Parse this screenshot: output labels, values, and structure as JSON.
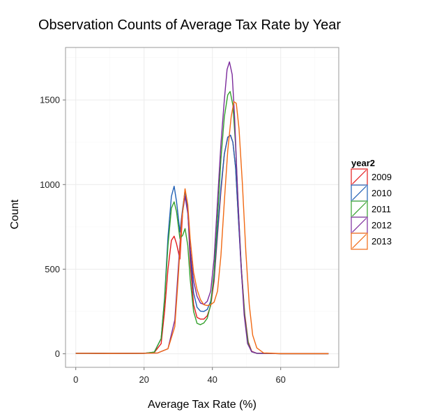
{
  "chart_data": {
    "type": "line",
    "title": "Observation Counts of Average Tax Rate by Year",
    "xlabel": "Average Tax Rate (%)",
    "ylabel": "Count",
    "xlim": [
      -3,
      77
    ],
    "ylim": [
      -80,
      1810
    ],
    "xticks": [
      0,
      20,
      40,
      60
    ],
    "yticks": [
      0,
      500,
      1000,
      1500
    ],
    "grid": true,
    "legend": {
      "title": "year2",
      "position": "right"
    },
    "series": [
      {
        "name": "2009",
        "color": "#e41a1c",
        "points": [
          [
            0,
            3
          ],
          [
            10,
            2
          ],
          [
            20,
            3
          ],
          [
            23,
            8
          ],
          [
            25,
            60
          ],
          [
            26,
            250
          ],
          [
            27,
            500
          ],
          [
            28,
            670
          ],
          [
            28.8,
            695
          ],
          [
            29.5,
            650
          ],
          [
            30.5,
            560
          ],
          [
            31.3,
            840
          ],
          [
            32,
            970
          ],
          [
            32.8,
            860
          ],
          [
            33.5,
            540
          ],
          [
            34.5,
            290
          ],
          [
            35.5,
            215
          ],
          [
            36.5,
            205
          ],
          [
            37.5,
            205
          ],
          [
            38.5,
            225
          ],
          [
            39.5,
            285
          ],
          [
            40.5,
            430
          ],
          [
            41.5,
            700
          ],
          [
            42.5,
            960
          ],
          [
            43.5,
            1180
          ],
          [
            44.5,
            1280
          ],
          [
            45.3,
            1290
          ],
          [
            46,
            1250
          ],
          [
            46.8,
            1100
          ],
          [
            47.5,
            840
          ],
          [
            48.5,
            500
          ],
          [
            49.5,
            230
          ],
          [
            50.5,
            70
          ],
          [
            51.5,
            15
          ],
          [
            53,
            3
          ],
          [
            60,
            1
          ],
          [
            74,
            1
          ]
        ]
      },
      {
        "name": "2010",
        "color": "#1f5fb4",
        "points": [
          [
            0,
            3
          ],
          [
            10,
            2
          ],
          [
            20,
            3
          ],
          [
            23,
            10
          ],
          [
            25,
            90
          ],
          [
            26,
            330
          ],
          [
            27,
            690
          ],
          [
            28,
            930
          ],
          [
            28.8,
            990
          ],
          [
            29.5,
            900
          ],
          [
            30.5,
            720
          ],
          [
            31.3,
            860
          ],
          [
            32,
            960
          ],
          [
            32.8,
            850
          ],
          [
            33.5,
            590
          ],
          [
            34.5,
            360
          ],
          [
            35.5,
            275
          ],
          [
            36.5,
            252
          ],
          [
            37.5,
            250
          ],
          [
            38.5,
            262
          ],
          [
            39.5,
            310
          ],
          [
            40.5,
            450
          ],
          [
            41.5,
            720
          ],
          [
            42.5,
            980
          ],
          [
            43.5,
            1180
          ],
          [
            44.5,
            1280
          ],
          [
            45.3,
            1292
          ],
          [
            46,
            1250
          ],
          [
            46.8,
            1100
          ],
          [
            47.5,
            840
          ],
          [
            48.5,
            480
          ],
          [
            49.5,
            210
          ],
          [
            50.5,
            60
          ],
          [
            51.5,
            12
          ],
          [
            53,
            3
          ],
          [
            60,
            1
          ],
          [
            74,
            1
          ]
        ]
      },
      {
        "name": "2011",
        "color": "#33a02c",
        "points": [
          [
            0,
            3
          ],
          [
            10,
            2
          ],
          [
            20,
            3
          ],
          [
            23,
            10
          ],
          [
            25,
            90
          ],
          [
            26,
            320
          ],
          [
            27,
            640
          ],
          [
            28,
            860
          ],
          [
            28.8,
            898
          ],
          [
            29.5,
            840
          ],
          [
            30.5,
            680
          ],
          [
            31.3,
            700
          ],
          [
            32,
            740
          ],
          [
            32.8,
            640
          ],
          [
            33.5,
            440
          ],
          [
            34.5,
            250
          ],
          [
            35.5,
            180
          ],
          [
            36.5,
            172
          ],
          [
            37.5,
            182
          ],
          [
            38.5,
            210
          ],
          [
            39.5,
            290
          ],
          [
            40.5,
            480
          ],
          [
            41.5,
            800
          ],
          [
            42.5,
            1150
          ],
          [
            43.5,
            1400
          ],
          [
            44.5,
            1530
          ],
          [
            45.2,
            1550
          ],
          [
            46,
            1470
          ],
          [
            46.8,
            1230
          ],
          [
            47.5,
            900
          ],
          [
            48.5,
            500
          ],
          [
            49.5,
            210
          ],
          [
            50.5,
            60
          ],
          [
            51.5,
            12
          ],
          [
            53,
            3
          ],
          [
            60,
            1
          ],
          [
            74,
            1
          ]
        ]
      },
      {
        "name": "2012",
        "color": "#7b2a9c",
        "points": [
          [
            0,
            3
          ],
          [
            10,
            2
          ],
          [
            20,
            3
          ],
          [
            24,
            5
          ],
          [
            27,
            30
          ],
          [
            29,
            200
          ],
          [
            30,
            500
          ],
          [
            31,
            800
          ],
          [
            32,
            930
          ],
          [
            32.8,
            830
          ],
          [
            33.5,
            620
          ],
          [
            34.5,
            430
          ],
          [
            35.5,
            340
          ],
          [
            36.5,
            300
          ],
          [
            37.5,
            292
          ],
          [
            38.5,
            310
          ],
          [
            39.5,
            370
          ],
          [
            40.5,
            560
          ],
          [
            41.5,
            900
          ],
          [
            42.5,
            1240
          ],
          [
            43.5,
            1500
          ],
          [
            44.3,
            1680
          ],
          [
            45,
            1725
          ],
          [
            45.8,
            1650
          ],
          [
            46.5,
            1400
          ],
          [
            47.3,
            1000
          ],
          [
            48.3,
            560
          ],
          [
            49.3,
            230
          ],
          [
            50.3,
            60
          ],
          [
            51.5,
            12
          ],
          [
            53,
            3
          ],
          [
            60,
            1
          ],
          [
            74,
            1
          ]
        ]
      },
      {
        "name": "2013",
        "color": "#f16913",
        "points": [
          [
            0,
            3
          ],
          [
            10,
            2
          ],
          [
            20,
            3
          ],
          [
            24,
            5
          ],
          [
            27,
            30
          ],
          [
            29,
            160
          ],
          [
            30,
            450
          ],
          [
            31,
            780
          ],
          [
            32,
            975
          ],
          [
            32.8,
            880
          ],
          [
            33.5,
            680
          ],
          [
            34.5,
            480
          ],
          [
            35.5,
            380
          ],
          [
            36.5,
            320
          ],
          [
            37.5,
            290
          ],
          [
            38.5,
            285
          ],
          [
            39.5,
            290
          ],
          [
            40.5,
            305
          ],
          [
            41.5,
            370
          ],
          [
            42.5,
            580
          ],
          [
            43.5,
            900
          ],
          [
            44.5,
            1200
          ],
          [
            45.5,
            1400
          ],
          [
            46.3,
            1490
          ],
          [
            47,
            1480
          ],
          [
            47.8,
            1330
          ],
          [
            48.8,
            1000
          ],
          [
            49.8,
            600
          ],
          [
            50.8,
            290
          ],
          [
            51.8,
            110
          ],
          [
            53,
            35
          ],
          [
            55,
            5
          ],
          [
            60,
            1
          ],
          [
            74,
            1
          ]
        ]
      }
    ]
  }
}
